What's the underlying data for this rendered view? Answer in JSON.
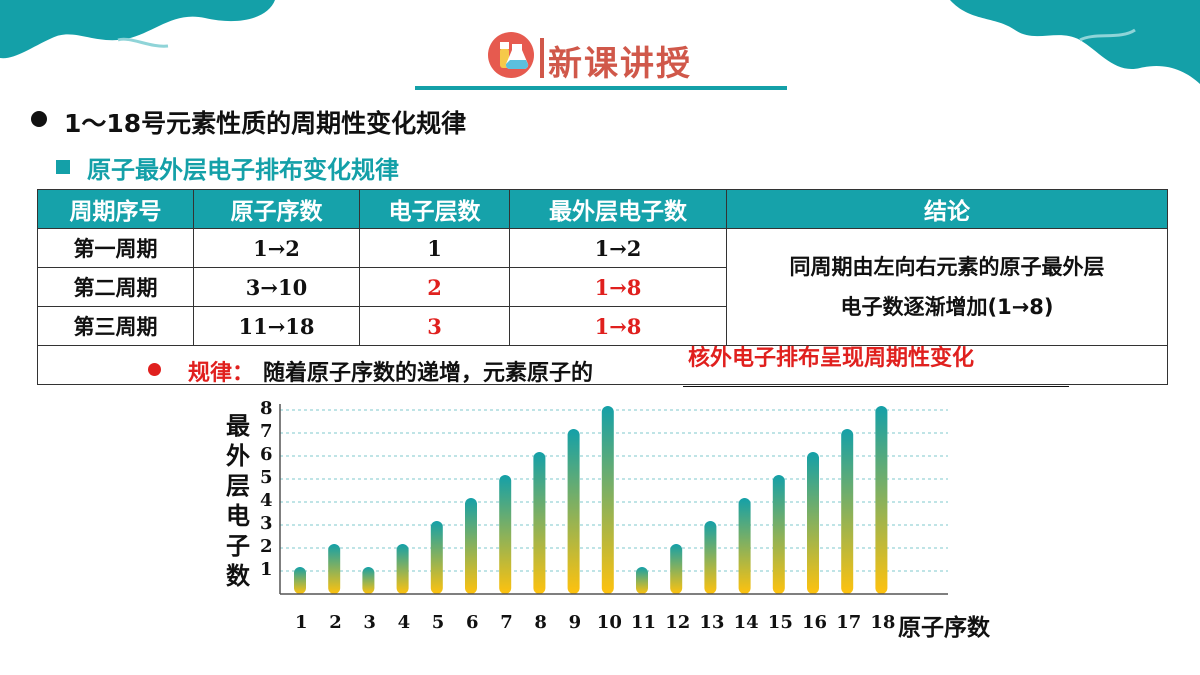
{
  "header": {
    "title": "新课讲授",
    "icon": "chemistry-flask-icon"
  },
  "heading": "1～18号元素性质的周期性变化规律",
  "subheading": "原子最外层电子排布变化规律",
  "table": {
    "headers": [
      "周期序号",
      "原子序数",
      "电子层数",
      "最外层电子数",
      "结论"
    ],
    "rows": [
      {
        "period": "第一周期",
        "atomic": "1→2",
        "layers": "1",
        "outer": "1→2"
      },
      {
        "period": "第二周期",
        "atomic": "3→10",
        "layers": "2",
        "outer": "1→8"
      },
      {
        "period": "第三周期",
        "atomic": "11→18",
        "layers": "3",
        "outer": "1→8"
      }
    ],
    "conclusion_line1": "同周期由左向右元素的原子最外层",
    "conclusion_line2": "电子数逐渐增加(1→8)"
  },
  "rule": {
    "label": "规律：",
    "text": "随着原子序数的递增，元素原子的",
    "answer": "核外电子排布呈现周期性变化"
  },
  "chart_data": {
    "type": "bar",
    "ylabel": "最外层电子数",
    "xlabel": "原子序数",
    "categories": [
      "1",
      "2",
      "3",
      "4",
      "5",
      "6",
      "7",
      "8",
      "9",
      "10",
      "11",
      "12",
      "13",
      "14",
      "15",
      "16",
      "17",
      "18"
    ],
    "values": [
      1,
      2,
      1,
      2,
      3,
      4,
      5,
      6,
      7,
      8,
      1,
      2,
      3,
      4,
      5,
      6,
      7,
      8
    ],
    "yticks": [
      "1",
      "2",
      "3",
      "4",
      "5",
      "6",
      "7",
      "8"
    ],
    "ylim": [
      0,
      8
    ],
    "grid": true,
    "colors": {
      "bar_top": "#14a0a8",
      "bar_bottom": "#ffc20e"
    }
  }
}
